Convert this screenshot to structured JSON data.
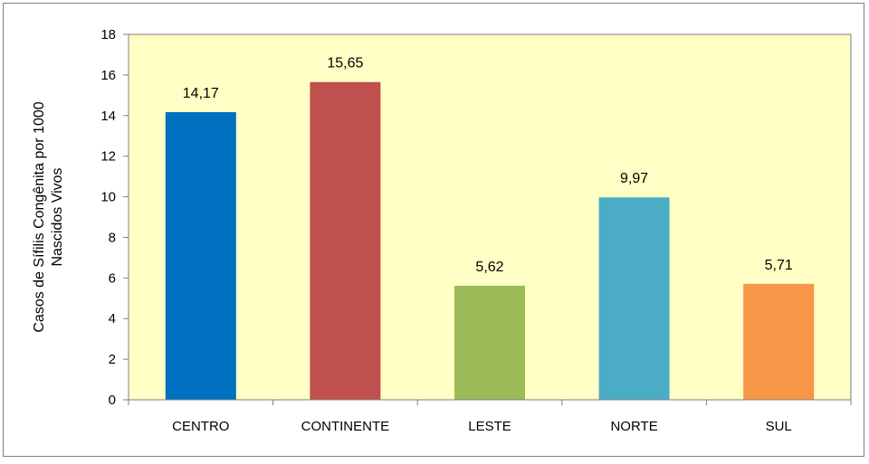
{
  "chart_data": {
    "type": "bar",
    "categories": [
      "CENTRO",
      "CONTINENTE",
      "LESTE",
      "NORTE",
      "SUL"
    ],
    "values": [
      14.17,
      15.65,
      5.62,
      9.97,
      5.71
    ],
    "value_labels": [
      "14,17",
      "15,65",
      "5,62",
      "9,97",
      "5,71"
    ],
    "colors": [
      "#0070C0",
      "#C0504D",
      "#9BBB59",
      "#4BACC6",
      "#F79646"
    ],
    "title": "",
    "xlabel": "",
    "ylabel_lines": [
      "Casos de Sífilis Congênita por 1000",
      "Nascidos Vivos"
    ],
    "ylim": [
      0,
      18
    ],
    "yticks": [
      0,
      2,
      4,
      6,
      8,
      10,
      12,
      14,
      16,
      18
    ],
    "grid": false,
    "plot_background": "#FFFFC5",
    "legend": "none"
  }
}
